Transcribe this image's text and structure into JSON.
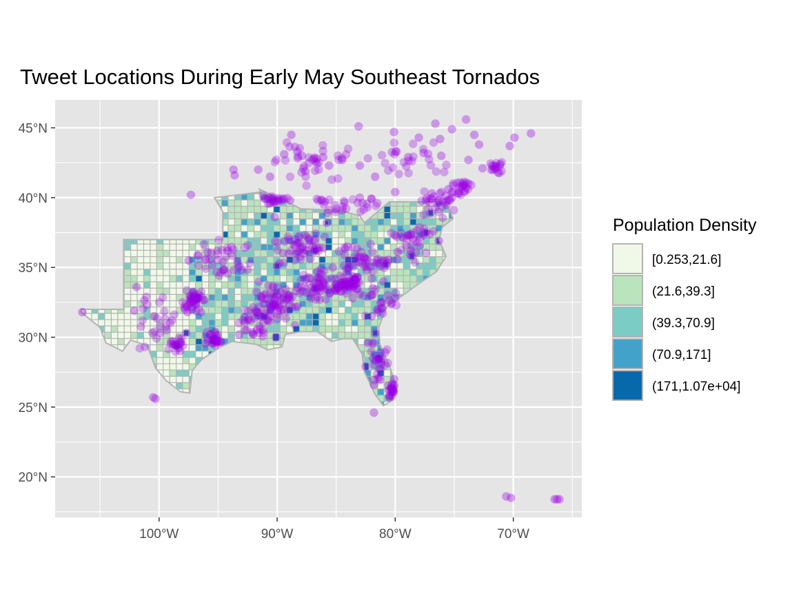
{
  "chart_data": {
    "type": "choropleth_map_with_points",
    "title": "Tweet Locations During Early May Southeast Tornados",
    "xlabel": "",
    "ylabel": "",
    "xlim": [
      -108.8,
      -64.2
    ],
    "ylim": [
      17.1,
      47.0
    ],
    "x_ticks": [
      {
        "value": -100,
        "label": "100°W"
      },
      {
        "value": -90,
        "label": "90°W"
      },
      {
        "value": -80,
        "label": "80°W"
      },
      {
        "value": -70,
        "label": "70°W"
      }
    ],
    "y_ticks": [
      {
        "value": 20,
        "label": "20°N"
      },
      {
        "value": 25,
        "label": "25°N"
      },
      {
        "value": 30,
        "label": "30°N"
      },
      {
        "value": 35,
        "label": "35°N"
      },
      {
        "value": 40,
        "label": "40°N"
      },
      {
        "value": 45,
        "label": "45°N"
      }
    ],
    "grid": true,
    "panel_color": "#e5e5e5",
    "point_color": "#9b00e6",
    "boundary_color": "#b3b3b3",
    "legend": {
      "title": "Population Density",
      "placement": "right",
      "entries": [
        {
          "label": "[0.253,21.6]",
          "color": "#f0f9e8"
        },
        {
          "label": "(21.6,39.3]",
          "color": "#bae4bc"
        },
        {
          "label": "(39.3,70.9]",
          "color": "#7bccc4"
        },
        {
          "label": "(70.9,171]",
          "color": "#43a2ca"
        },
        {
          "label": "(171,1.07e+04]",
          "color": "#0868ac"
        }
      ]
    },
    "region_outline": [
      [
        -106.6,
        32.0
      ],
      [
        -103.0,
        32.0
      ],
      [
        -103.0,
        37.0
      ],
      [
        -94.6,
        37.0
      ],
      [
        -94.6,
        39.0
      ],
      [
        -95.3,
        40.0
      ],
      [
        -91.4,
        40.4
      ],
      [
        -91.5,
        40.6
      ],
      [
        -89.4,
        39.8
      ],
      [
        -88.0,
        39.2
      ],
      [
        -84.8,
        39.1
      ],
      [
        -83.0,
        38.7
      ],
      [
        -82.6,
        38.2
      ],
      [
        -80.5,
        39.7
      ],
      [
        -77.5,
        39.7
      ],
      [
        -75.8,
        39.7
      ],
      [
        -75.5,
        39.3
      ],
      [
        -75.1,
        38.5
      ],
      [
        -76.0,
        37.9
      ],
      [
        -76.3,
        37.0
      ],
      [
        -75.7,
        35.8
      ],
      [
        -76.5,
        34.7
      ],
      [
        -77.9,
        33.9
      ],
      [
        -79.2,
        33.1
      ],
      [
        -80.7,
        32.2
      ],
      [
        -81.4,
        30.7
      ],
      [
        -81.3,
        29.5
      ],
      [
        -80.5,
        28.0
      ],
      [
        -80.0,
        26.7
      ],
      [
        -80.2,
        25.5
      ],
      [
        -81.0,
        25.1
      ],
      [
        -81.7,
        25.9
      ],
      [
        -82.6,
        27.5
      ],
      [
        -82.8,
        28.8
      ],
      [
        -83.6,
        29.9
      ],
      [
        -84.4,
        29.9
      ],
      [
        -85.4,
        29.7
      ],
      [
        -86.6,
        30.4
      ],
      [
        -88.0,
        30.4
      ],
      [
        -89.3,
        30.2
      ],
      [
        -89.6,
        29.3
      ],
      [
        -90.8,
        29.1
      ],
      [
        -91.8,
        29.5
      ],
      [
        -93.8,
        29.7
      ],
      [
        -94.8,
        29.3
      ],
      [
        -96.4,
        28.4
      ],
      [
        -97.2,
        27.6
      ],
      [
        -97.4,
        26.0
      ],
      [
        -98.2,
        26.1
      ],
      [
        -99.4,
        26.9
      ],
      [
        -100.3,
        27.8
      ],
      [
        -101.0,
        29.4
      ],
      [
        -102.4,
        29.8
      ],
      [
        -103.1,
        29.0
      ],
      [
        -104.5,
        29.6
      ],
      [
        -105.0,
        30.7
      ],
      [
        -106.6,
        31.8
      ]
    ],
    "high_density_areas": [
      [
        -80.2,
        26.1,
        0.6
      ],
      [
        -82.5,
        27.9,
        0.5
      ],
      [
        -81.4,
        28.5,
        0.5
      ],
      [
        -84.4,
        33.7,
        0.5
      ],
      [
        -90.1,
        30.0,
        0.5
      ],
      [
        -95.4,
        29.8,
        0.6
      ],
      [
        -96.8,
        32.8,
        0.6
      ],
      [
        -86.8,
        36.2,
        0.4
      ],
      [
        -80.8,
        35.2,
        0.4
      ],
      [
        -77.4,
        37.5,
        0.4
      ],
      [
        -78.6,
        35.8,
        0.4
      ],
      [
        -81.7,
        30.3,
        0.4
      ],
      [
        -98.5,
        29.4,
        0.4
      ],
      [
        -97.7,
        30.3,
        0.4
      ],
      [
        -90.0,
        35.1,
        0.4
      ],
      [
        -86.8,
        33.5,
        0.4
      ],
      [
        -76.3,
        36.9,
        0.4
      ],
      [
        -85.8,
        38.2,
        0.3
      ],
      [
        -84.5,
        39.1,
        0.3
      ],
      [
        -77.0,
        38.9,
        0.4
      ]
    ],
    "tweet_clusters": [
      {
        "center": [
          -84.0,
          33.8
        ],
        "spread": [
          1.0,
          0.7
        ],
        "count": 60
      },
      {
        "center": [
          -90.0,
          32.5
        ],
        "spread": [
          1.6,
          1.3
        ],
        "count": 70
      },
      {
        "center": [
          -97.0,
          32.6
        ],
        "spread": [
          0.8,
          0.7
        ],
        "count": 40
      },
      {
        "center": [
          -95.4,
          29.8
        ],
        "spread": [
          0.7,
          0.5
        ],
        "count": 25
      },
      {
        "center": [
          -98.5,
          29.4
        ],
        "spread": [
          0.6,
          0.5
        ],
        "count": 18
      },
      {
        "center": [
          -86.5,
          33.6
        ],
        "spread": [
          1.4,
          1.0
        ],
        "count": 45
      },
      {
        "center": [
          -88.0,
          36.5
        ],
        "spread": [
          2.0,
          0.9
        ],
        "count": 45
      },
      {
        "center": [
          -82.5,
          35.5
        ],
        "spread": [
          2.5,
          1.0
        ],
        "count": 45
      },
      {
        "center": [
          -78.5,
          36.8
        ],
        "spread": [
          1.4,
          1.2
        ],
        "count": 30
      },
      {
        "center": [
          -94.5,
          35.8
        ],
        "spread": [
          2.0,
          1.2
        ],
        "count": 35
      },
      {
        "center": [
          -81.4,
          28.5
        ],
        "spread": [
          0.7,
          1.2
        ],
        "count": 25
      },
      {
        "center": [
          -80.2,
          26.2
        ],
        "spread": [
          0.3,
          0.4
        ],
        "count": 18
      },
      {
        "center": [
          -90.5,
          39.8
        ],
        "spread": [
          1.2,
          0.3
        ],
        "count": 20
      },
      {
        "center": [
          -84.5,
          39.5
        ],
        "spread": [
          2.5,
          0.6
        ],
        "count": 25
      },
      {
        "center": [
          -76.5,
          39.6
        ],
        "spread": [
          1.5,
          0.7
        ],
        "count": 25
      },
      {
        "center": [
          -74.5,
          40.7
        ],
        "spread": [
          0.8,
          0.4
        ],
        "count": 20
      },
      {
        "center": [
          -71.5,
          42.2
        ],
        "spread": [
          0.8,
          0.4
        ],
        "count": 12
      },
      {
        "center": [
          -86.5,
          42.5
        ],
        "spread": [
          3.2,
          1.3
        ],
        "count": 35
      },
      {
        "center": [
          -79.0,
          42.8
        ],
        "spread": [
          3.0,
          1.2
        ],
        "count": 25
      },
      {
        "center": [
          -100.0,
          31.5
        ],
        "spread": [
          1.5,
          1.8
        ],
        "count": 22
      },
      {
        "center": [
          -92.0,
          31.0
        ],
        "spread": [
          1.2,
          1.0
        ],
        "count": 25
      },
      {
        "center": [
          -81.0,
          32.3
        ],
        "spread": [
          1.2,
          0.8
        ],
        "count": 20
      }
    ],
    "tweet_points": [
      [
        -84.0,
        33.8
      ],
      [
        -85.0,
        33.8
      ],
      [
        -84.5,
        33.9
      ],
      [
        -83.9,
        34.0
      ],
      [
        -84.3,
        33.6
      ],
      [
        -90.1,
        30.0
      ],
      [
        -90.2,
        32.3
      ],
      [
        -89.5,
        32.0
      ],
      [
        -90.6,
        31.5
      ],
      [
        -89.0,
        33.0
      ],
      [
        -96.8,
        32.8
      ],
      [
        -97.3,
        32.8
      ],
      [
        -97.1,
        33.2
      ],
      [
        -96.9,
        32.4
      ],
      [
        -97.6,
        31.8
      ],
      [
        -95.4,
        29.8
      ],
      [
        -95.1,
        29.6
      ],
      [
        -98.5,
        29.4
      ],
      [
        -97.7,
        30.3
      ],
      [
        -98.8,
        29.7
      ],
      [
        -86.8,
        33.5
      ],
      [
        -87.5,
        33.2
      ],
      [
        -86.6,
        34.7
      ],
      [
        -85.3,
        35.0
      ],
      [
        -86.8,
        36.2
      ],
      [
        -90.0,
        35.1
      ],
      [
        -89.8,
        35.3
      ],
      [
        -88.5,
        36.6
      ],
      [
        -87.0,
        36.5
      ],
      [
        -89.0,
        37.0
      ],
      [
        -80.8,
        35.2
      ],
      [
        -81.0,
        34.0
      ],
      [
        -82.4,
        34.8
      ],
      [
        -82.5,
        35.6
      ],
      [
        -78.6,
        35.8
      ],
      [
        -79.8,
        36.1
      ],
      [
        -77.4,
        37.5
      ],
      [
        -76.3,
        36.9
      ],
      [
        -78.9,
        37.3
      ],
      [
        -80.0,
        37.3
      ],
      [
        -94.6,
        35.4
      ],
      [
        -94.2,
        36.2
      ],
      [
        -95.9,
        36.1
      ],
      [
        -97.5,
        35.5
      ],
      [
        -93.0,
        34.8
      ],
      [
        -81.4,
        28.5
      ],
      [
        -82.5,
        27.9
      ],
      [
        -81.7,
        30.3
      ],
      [
        -82.3,
        29.6
      ],
      [
        -80.1,
        27.0
      ],
      [
        -80.2,
        26.1
      ],
      [
        -80.3,
        25.8
      ],
      [
        -80.1,
        26.6
      ],
      [
        -81.8,
        26.6
      ],
      [
        -81.8,
        24.6
      ],
      [
        -90.2,
        38.6
      ],
      [
        -90.8,
        39.9
      ],
      [
        -89.6,
        39.8
      ],
      [
        -88.9,
        39.8
      ],
      [
        -89.4,
        39.9
      ],
      [
        -84.5,
        39.1
      ],
      [
        -83.0,
        40.0
      ],
      [
        -85.8,
        38.2
      ],
      [
        -86.2,
        39.8
      ],
      [
        -82.0,
        39.9
      ],
      [
        -77.0,
        38.9
      ],
      [
        -76.6,
        39.3
      ],
      [
        -75.2,
        40.0
      ],
      [
        -76.9,
        40.3
      ],
      [
        -77.4,
        39.8
      ],
      [
        -74.0,
        40.7
      ],
      [
        -74.2,
        40.9
      ],
      [
        -73.8,
        41.0
      ],
      [
        -74.7,
        40.3
      ],
      [
        -75.5,
        40.6
      ],
      [
        -71.1,
        42.4
      ],
      [
        -71.4,
        42.2
      ],
      [
        -71.8,
        42.3
      ],
      [
        -72.6,
        42.1
      ],
      [
        -71.3,
        41.8
      ],
      [
        -87.6,
        41.9
      ],
      [
        -88.3,
        43.3
      ],
      [
        -87.9,
        43.0
      ],
      [
        -89.4,
        43.1
      ],
      [
        -83.0,
        42.3
      ],
      [
        -81.7,
        41.5
      ],
      [
        -85.6,
        42.3
      ],
      [
        -86.1,
        42.9
      ],
      [
        -84.5,
        42.7
      ],
      [
        -80.0,
        40.4
      ],
      [
        -78.9,
        42.9
      ],
      [
        -77.6,
        43.2
      ],
      [
        -76.1,
        43.0
      ],
      [
        -73.8,
        42.7
      ],
      [
        -79.9,
        43.3
      ],
      [
        -99.9,
        30.3
      ],
      [
        -100.4,
        31.5
      ],
      [
        -101.9,
        33.6
      ],
      [
        -102.1,
        31.9
      ],
      [
        -106.5,
        31.8
      ],
      [
        -92.0,
        30.2
      ],
      [
        -93.2,
        30.2
      ],
      [
        -91.2,
        30.5
      ],
      [
        -92.4,
        31.3
      ],
      [
        -91.1,
        32.4
      ],
      [
        -81.1,
        32.1
      ],
      [
        -80.0,
        32.8
      ],
      [
        -81.9,
        33.5
      ],
      [
        -82.0,
        31.5
      ],
      [
        -83.6,
        32.8
      ],
      [
        -100.5,
        25.7
      ],
      [
        -100.3,
        25.6
      ],
      [
        -70.6,
        18.6
      ],
      [
        -70.2,
        18.5
      ],
      [
        -66.5,
        18.4
      ],
      [
        -66.1,
        18.4
      ],
      [
        -66.3,
        18.4
      ],
      [
        -97.3,
        40.2
      ],
      [
        -68.5,
        44.6
      ],
      [
        -69.9,
        44.3
      ],
      [
        -70.3,
        43.7
      ],
      [
        -73.3,
        44.5
      ],
      [
        -76.6,
        45.3
      ],
      [
        -74.0,
        45.6
      ],
      [
        -80.1,
        44.7
      ],
      [
        -83.1,
        45.1
      ],
      [
        -88.8,
        44.5
      ],
      [
        -93.6,
        41.6
      ],
      [
        -93.7,
        42.0
      ],
      [
        -91.6,
        42.0
      ],
      [
        -90.6,
        41.5
      ],
      [
        -75.2,
        44.9
      ],
      [
        -72.9,
        43.8
      ],
      [
        -76.2,
        44.2
      ],
      [
        -78.0,
        44.3
      ]
    ]
  }
}
